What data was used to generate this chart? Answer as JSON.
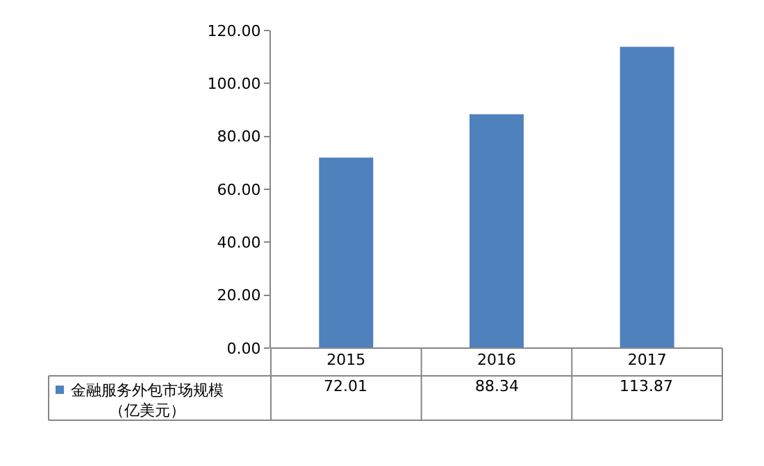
{
  "chart_data": {
    "type": "bar",
    "categories": [
      "2015",
      "2016",
      "2017"
    ],
    "series": [
      {
        "name": "金融服务外包市场规模（亿美元）",
        "color": "#4f81bd",
        "values": [
          72.01,
          88.34,
          113.87
        ]
      }
    ],
    "ylim": [
      0,
      120
    ],
    "yticks": [
      {
        "value": 0,
        "label": "0.00"
      },
      {
        "value": 20,
        "label": "20.00"
      },
      {
        "value": 40,
        "label": "40.00"
      },
      {
        "value": 60,
        "label": "60.00"
      },
      {
        "value": 80,
        "label": "80.00"
      },
      {
        "value": 100,
        "label": "100.00"
      },
      {
        "value": 120,
        "label": "120.00"
      }
    ],
    "grid": false,
    "data_labels": true
  }
}
